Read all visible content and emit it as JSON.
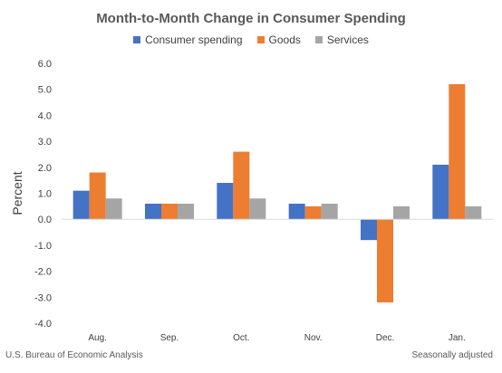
{
  "chart_data": {
    "type": "bar",
    "title": "Month-to-Month Change in Consumer Spending",
    "xlabel": "",
    "ylabel": "Percent",
    "ylim": [
      -4.0,
      6.0
    ],
    "yticks": [
      "6.0",
      "5.0",
      "4.0",
      "3.0",
      "2.0",
      "1.0",
      "0.0",
      "-1.0",
      "-2.0",
      "-3.0",
      "-4.0"
    ],
    "ytick_values": [
      6,
      5,
      4,
      3,
      2,
      1,
      0,
      -1,
      -2,
      -3,
      -4
    ],
    "categories": [
      "Aug.",
      "Sep.",
      "Oct.",
      "Nov.",
      "Dec.",
      "Jan."
    ],
    "series": [
      {
        "name": "Consumer spending",
        "color": "#4472C4",
        "values": [
          1.1,
          0.6,
          1.4,
          0.6,
          -0.8,
          2.1
        ]
      },
      {
        "name": "Goods",
        "color": "#ED7D31",
        "values": [
          1.8,
          0.6,
          2.6,
          0.5,
          -3.2,
          5.2
        ]
      },
      {
        "name": "Services",
        "color": "#A5A5A5",
        "values": [
          0.8,
          0.6,
          0.8,
          0.6,
          0.5,
          0.5
        ]
      }
    ],
    "grid": false,
    "legend_position": "top"
  },
  "footer": {
    "source": "U.S. Bureau of Economic Analysis",
    "note": "Seasonally adjusted"
  }
}
